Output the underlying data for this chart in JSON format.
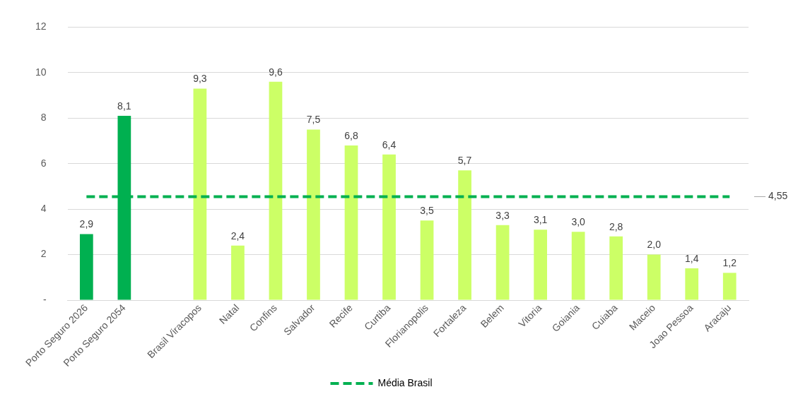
{
  "chart_data": {
    "type": "bar",
    "categories": [
      "Porto Seguro 2026",
      "Porto Seguro 2054",
      null,
      "Brasil Viracopos",
      "Natal",
      "Confins",
      "Salvador",
      "Recife",
      "Curtiba",
      "Florianopolis",
      "Fortaleza",
      "Belem",
      "Vitoria",
      "Goiania",
      "Cuiaba",
      "Maceio",
      "Joao Pessoa",
      "Aracaju"
    ],
    "series": [
      {
        "colors": [
          "#00b050",
          "#00b050",
          null,
          "#ccff66",
          "#ccff66",
          "#ccff66",
          "#ccff66",
          "#ccff66",
          "#ccff66",
          "#ccff66",
          "#ccff66",
          "#ccff66",
          "#ccff66",
          "#ccff66",
          "#ccff66",
          "#ccff66",
          "#ccff66",
          "#ccff66"
        ],
        "values": [
          2.9,
          8.1,
          null,
          9.3,
          2.4,
          9.6,
          7.5,
          6.8,
          6.4,
          3.5,
          5.7,
          3.3,
          3.1,
          3.0,
          2.8,
          2.0,
          1.4,
          1.2
        ],
        "value_labels": [
          "2,9",
          "8,1",
          null,
          "9,3",
          "2,4",
          "9,6",
          "7,5",
          "6,8",
          "6,4",
          "3,5",
          "5,7",
          "3,3",
          "3,1",
          "3,0",
          "2,8",
          "2,0",
          "1,4",
          "1,2"
        ]
      },
      {
        "type": "line",
        "name": "Média Brasil",
        "color": "#00b050",
        "line_style": "dashed",
        "marker": "none",
        "values": [
          4.55,
          4.55,
          4.55,
          4.55,
          4.55,
          4.55,
          4.55,
          4.55,
          4.55,
          4.55,
          4.55,
          4.55,
          4.55,
          4.55,
          4.55,
          4.55,
          4.55,
          4.55
        ]
      }
    ],
    "annotations": [
      "4,55"
    ],
    "ylim": [
      0,
      12
    ],
    "yticks": [
      {
        "value": 0,
        "label": "-"
      },
      2,
      4,
      6,
      8,
      10,
      12
    ],
    "grid": "y",
    "legend": "bottom"
  }
}
